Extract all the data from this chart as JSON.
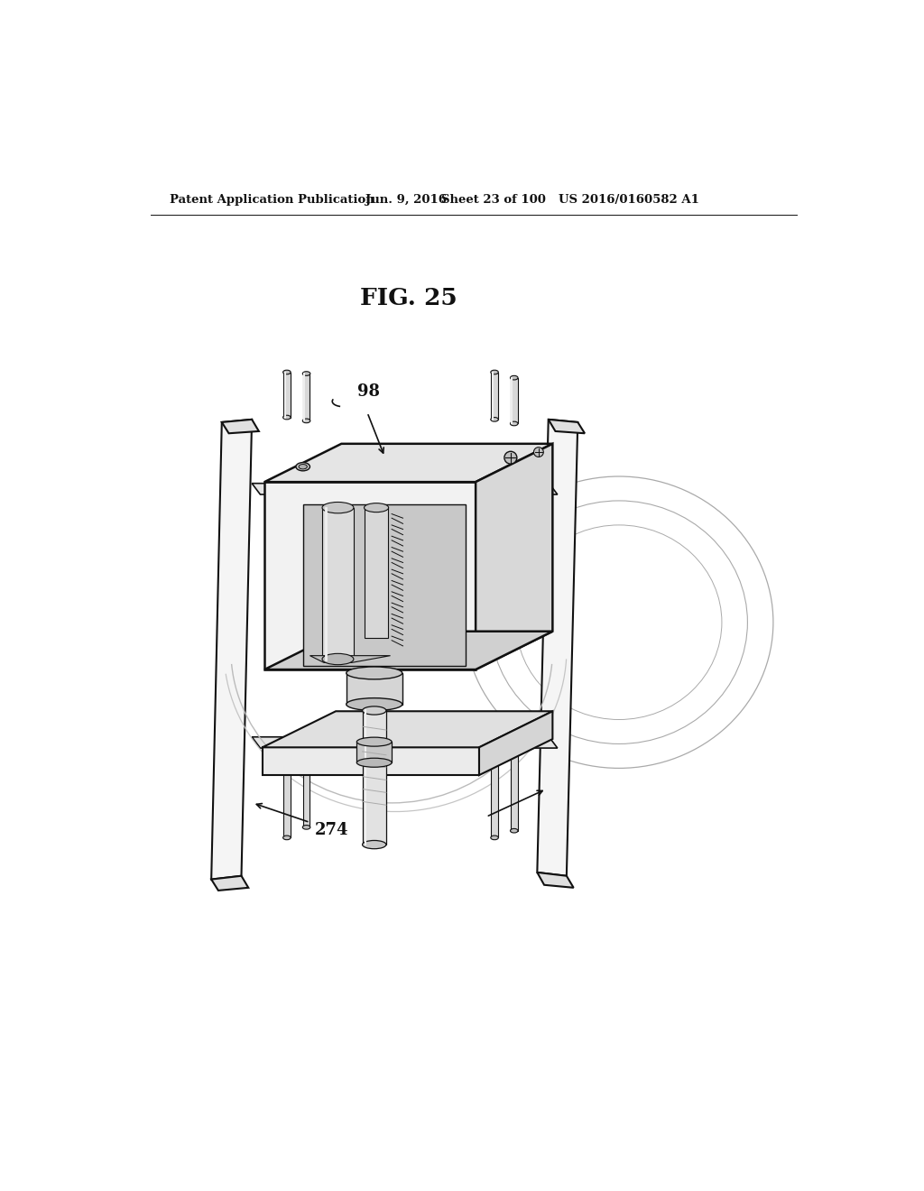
{
  "bg_color": "#ffffff",
  "header_left": "Patent Application Publication",
  "header_mid1": "Jun. 9, 2016",
  "header_mid2": "Sheet 23 of 100",
  "header_right": "US 2016/0160582 A1",
  "fig_label": "FIG. 25",
  "label_98": "98",
  "label_274": "274",
  "lc": "#111111",
  "fc_white": "#f8f8f8",
  "fc_lgray": "#e8e8e8",
  "fc_mgray": "#d0d0d0",
  "fc_dgray": "#b8b8b8",
  "fc_xdgray": "#999999"
}
